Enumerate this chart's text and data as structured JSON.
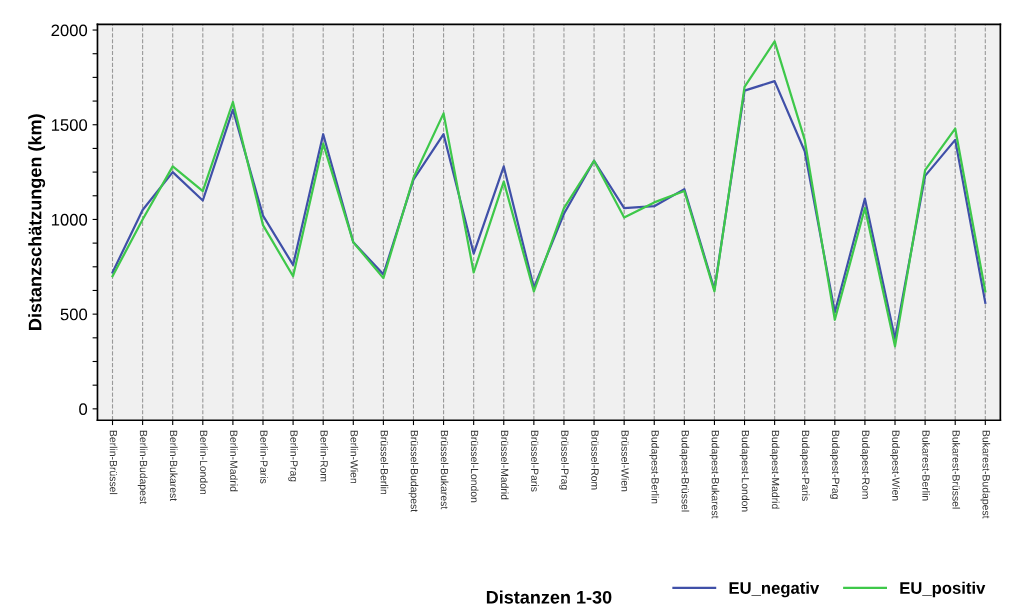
{
  "chart_data": {
    "type": "line",
    "xlabel": "Distanzen 1-30",
    "ylabel": "Distanzschätzungen (km)",
    "categories": [
      "Berlin-Brüssel",
      "Berlin-Budapest",
      "Berlin-Bukarest",
      "Berlin-London",
      "Berlin-Madrid",
      "Berlin-Paris",
      "Berlin-Prag",
      "Berlin-Rom",
      "Berlin-Wien",
      "Brüssel-Berlin",
      "Brüssel-Budapest",
      "Brüssel-Bukarest",
      "Brüssel-London",
      "Brüssel-Madrid",
      "Brüssel-Paris",
      "Brüssel-Prag",
      "Brüssel-Rom",
      "Brüssel-Wien",
      "Budapest-Berlin",
      "Budapest-Brüssel",
      "Budapest-Bukarest",
      "Budapest-London",
      "Budapest-Madrid",
      "Budapest-Paris",
      "Budapest-Prag",
      "Budapest-Rom",
      "Budapest-Wien",
      "Bukarest-Berlin",
      "Bukarest-Brüssel",
      "Bukarest-Budapest"
    ],
    "series": [
      {
        "name": "EU_negativ",
        "color": "#4050a8",
        "values": [
          720,
          1050,
          1250,
          1100,
          1580,
          1020,
          760,
          1450,
          880,
          710,
          1210,
          1450,
          820,
          1280,
          640,
          1030,
          1310,
          1060,
          1070,
          1160,
          630,
          1680,
          1730,
          1360,
          510,
          1110,
          370,
          1230,
          1420,
          560
        ]
      },
      {
        "name": "EU_positiv",
        "color": "#3ec84a",
        "values": [
          700,
          1000,
          1280,
          1150,
          1620,
          970,
          700,
          1400,
          880,
          690,
          1220,
          1560,
          720,
          1200,
          620,
          1060,
          1310,
          1010,
          1090,
          1150,
          620,
          1700,
          1940,
          1420,
          470,
          1060,
          330,
          1260,
          1480,
          620
        ]
      }
    ],
    "ylim": [
      -60,
      2030
    ],
    "yticks": [
      0,
      {
        "value": 125,
        "label": null
      },
      {
        "value": 250,
        "label": null
      },
      {
        "value": 375,
        "label": null
      },
      500,
      {
        "value": 625,
        "label": null
      },
      {
        "value": 750,
        "label": null
      },
      {
        "value": 875,
        "label": null
      },
      1000,
      {
        "value": 1125,
        "label": null
      },
      {
        "value": 1250,
        "label": null
      },
      {
        "value": 1375,
        "label": null
      },
      1500,
      {
        "value": 1625,
        "label": null
      },
      {
        "value": 1750,
        "label": null
      },
      {
        "value": 1875,
        "label": null
      },
      2000
    ],
    "grid": "x",
    "legend": "bottom right",
    "marker": "none",
    "line_style": "solid"
  }
}
